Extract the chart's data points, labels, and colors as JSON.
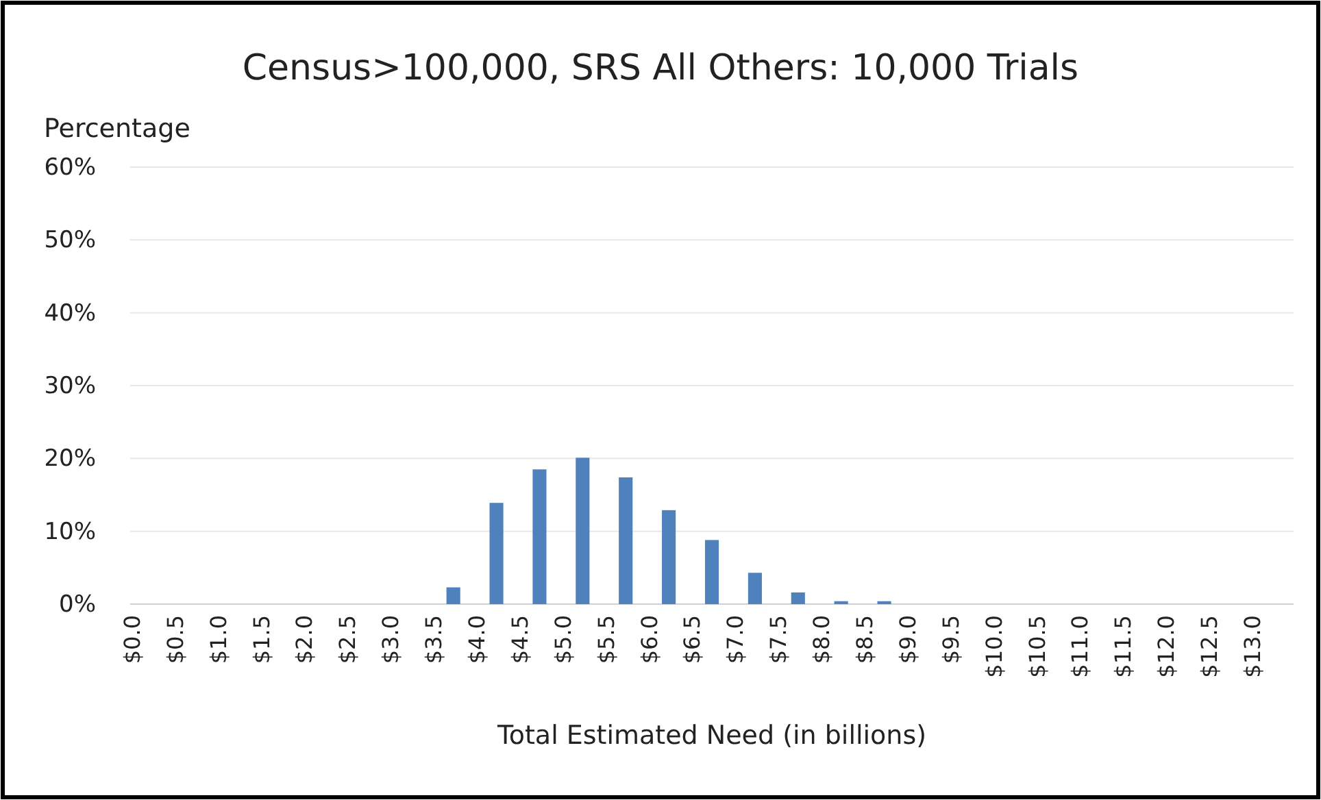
{
  "chart_data": {
    "type": "bar",
    "title": "Census>100,000, SRS All Others: 10,000 Trials",
    "ylabel": "Percentage",
    "xlabel": "Total Estimated Need (in billions)",
    "categories": [
      "$0.0",
      "$0.5",
      "$1.0",
      "$1.5",
      "$2.0",
      "$2.5",
      "$3.0",
      "$3.5",
      "$4.0",
      "$4.5",
      "$5.0",
      "$5.5",
      "$6.0",
      "$6.5",
      "$7.0",
      "$7.5",
      "$8.0",
      "$8.5",
      "$9.0",
      "$9.5",
      "$10.0",
      "$10.5",
      "$11.0",
      "$11.5",
      "$12.0",
      "$12.5",
      "$13.0"
    ],
    "values": [
      0,
      0,
      0,
      0,
      0,
      0,
      0,
      2.3,
      13.9,
      18.5,
      20.1,
      17.4,
      12.9,
      8.8,
      4.3,
      1.6,
      0.4,
      0.4,
      0,
      0,
      0,
      0,
      0,
      0,
      0,
      0,
      0
    ],
    "color": "#4f81bd",
    "ylim": [
      0,
      60
    ],
    "yticks": [
      {
        "value": 0,
        "label": "0%"
      },
      {
        "value": 10,
        "label": "10%"
      },
      {
        "value": 20,
        "label": "20%"
      },
      {
        "value": 30,
        "label": "30%"
      },
      {
        "value": 40,
        "label": "40%"
      },
      {
        "value": 50,
        "label": "50%"
      },
      {
        "value": 60,
        "label": "60%"
      }
    ],
    "grid": "y"
  }
}
